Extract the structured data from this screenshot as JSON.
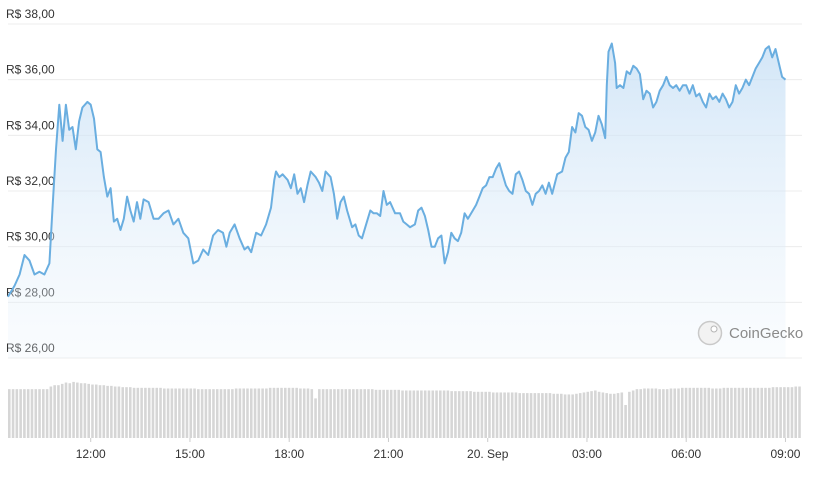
{
  "chart_data": {
    "type": "line",
    "currency_prefix": "R$",
    "watermark": "CoinGecko",
    "y_ticks": [
      "R$ 38,00",
      "R$ 36,00",
      "R$ 34,00",
      "R$ 32,00",
      "R$ 30,00",
      "R$ 28,00",
      "R$ 26,00"
    ],
    "y_tick_values": [
      38,
      36,
      34,
      32,
      30,
      28,
      26
    ],
    "ylim": [
      26,
      38
    ],
    "x_ticks": [
      "12:00",
      "15:00",
      "18:00",
      "21:00",
      "20. Sep",
      "03:00",
      "06:00",
      "09:00"
    ],
    "x_tick_hours": [
      12,
      15,
      18,
      21,
      24,
      27,
      30,
      33
    ],
    "xlim_hours": [
      9.5,
      33.5
    ],
    "grid": true,
    "series": [
      {
        "values": [
          [
            9.5,
            28.2
          ],
          [
            9.7,
            28.6
          ],
          [
            9.85,
            29.0
          ],
          [
            10.0,
            29.7
          ],
          [
            10.15,
            29.5
          ],
          [
            10.3,
            29.0
          ],
          [
            10.45,
            29.1
          ],
          [
            10.6,
            29.0
          ],
          [
            10.75,
            29.4
          ],
          [
            10.85,
            31.5
          ],
          [
            10.95,
            33.5
          ],
          [
            11.05,
            35.1
          ],
          [
            11.15,
            33.8
          ],
          [
            11.25,
            35.1
          ],
          [
            11.35,
            34.2
          ],
          [
            11.45,
            34.3
          ],
          [
            11.55,
            33.5
          ],
          [
            11.65,
            34.5
          ],
          [
            11.75,
            35.0
          ],
          [
            11.9,
            35.2
          ],
          [
            12.0,
            35.1
          ],
          [
            12.1,
            34.6
          ],
          [
            12.2,
            33.5
          ],
          [
            12.3,
            33.4
          ],
          [
            12.4,
            32.5
          ],
          [
            12.5,
            31.8
          ],
          [
            12.6,
            32.1
          ],
          [
            12.7,
            30.9
          ],
          [
            12.8,
            31.0
          ],
          [
            12.9,
            30.6
          ],
          [
            13.0,
            31.0
          ],
          [
            13.1,
            31.8
          ],
          [
            13.2,
            31.3
          ],
          [
            13.3,
            30.9
          ],
          [
            13.4,
            31.6
          ],
          [
            13.5,
            31.0
          ],
          [
            13.6,
            31.7
          ],
          [
            13.75,
            31.6
          ],
          [
            13.9,
            31.0
          ],
          [
            14.05,
            31.0
          ],
          [
            14.2,
            31.2
          ],
          [
            14.35,
            31.3
          ],
          [
            14.5,
            30.8
          ],
          [
            14.65,
            31.0
          ],
          [
            14.8,
            30.5
          ],
          [
            14.95,
            30.3
          ],
          [
            15.1,
            29.4
          ],
          [
            15.25,
            29.5
          ],
          [
            15.4,
            29.9
          ],
          [
            15.55,
            29.7
          ],
          [
            15.7,
            30.4
          ],
          [
            15.85,
            30.6
          ],
          [
            16.0,
            30.5
          ],
          [
            16.1,
            30.0
          ],
          [
            16.2,
            30.5
          ],
          [
            16.35,
            30.8
          ],
          [
            16.5,
            30.3
          ],
          [
            16.65,
            29.9
          ],
          [
            16.75,
            30.0
          ],
          [
            16.85,
            29.8
          ],
          [
            17.0,
            30.5
          ],
          [
            17.15,
            30.4
          ],
          [
            17.3,
            30.8
          ],
          [
            17.45,
            31.4
          ],
          [
            17.55,
            32.4
          ],
          [
            17.6,
            32.7
          ],
          [
            17.7,
            32.5
          ],
          [
            17.8,
            32.6
          ],
          [
            17.95,
            32.4
          ],
          [
            18.05,
            32.1
          ],
          [
            18.15,
            32.6
          ],
          [
            18.25,
            31.9
          ],
          [
            18.35,
            32.1
          ],
          [
            18.45,
            31.6
          ],
          [
            18.55,
            32.2
          ],
          [
            18.65,
            32.7
          ],
          [
            18.8,
            32.5
          ],
          [
            18.9,
            32.3
          ],
          [
            19.0,
            32.0
          ],
          [
            19.1,
            32.7
          ],
          [
            19.25,
            32.5
          ],
          [
            19.35,
            31.9
          ],
          [
            19.45,
            31.0
          ],
          [
            19.55,
            31.6
          ],
          [
            19.65,
            31.8
          ],
          [
            19.75,
            31.3
          ],
          [
            19.9,
            30.7
          ],
          [
            20.0,
            30.8
          ],
          [
            20.1,
            30.4
          ],
          [
            20.2,
            30.3
          ],
          [
            20.3,
            30.7
          ],
          [
            20.45,
            31.3
          ],
          [
            20.55,
            31.2
          ],
          [
            20.65,
            31.2
          ],
          [
            20.75,
            31.1
          ],
          [
            20.85,
            32.0
          ],
          [
            20.95,
            31.5
          ],
          [
            21.05,
            31.6
          ],
          [
            21.2,
            31.2
          ],
          [
            21.35,
            31.2
          ],
          [
            21.45,
            30.9
          ],
          [
            21.55,
            30.8
          ],
          [
            21.65,
            30.7
          ],
          [
            21.8,
            30.8
          ],
          [
            21.9,
            31.3
          ],
          [
            22.0,
            31.4
          ],
          [
            22.1,
            31.1
          ],
          [
            22.2,
            30.6
          ],
          [
            22.3,
            30.0
          ],
          [
            22.4,
            30.0
          ],
          [
            22.5,
            30.3
          ],
          [
            22.6,
            30.4
          ],
          [
            22.7,
            29.4
          ],
          [
            22.8,
            29.8
          ],
          [
            22.9,
            30.5
          ],
          [
            23.0,
            30.3
          ],
          [
            23.1,
            30.2
          ],
          [
            23.2,
            30.5
          ],
          [
            23.3,
            31.2
          ],
          [
            23.4,
            31.0
          ],
          [
            23.55,
            31.3
          ],
          [
            23.65,
            31.5
          ],
          [
            23.75,
            31.8
          ],
          [
            23.85,
            32.1
          ],
          [
            23.95,
            32.2
          ],
          [
            24.05,
            32.5
          ],
          [
            24.15,
            32.5
          ],
          [
            24.25,
            32.8
          ],
          [
            24.35,
            33.0
          ],
          [
            24.45,
            32.6
          ],
          [
            24.55,
            32.2
          ],
          [
            24.65,
            32.0
          ],
          [
            24.75,
            31.9
          ],
          [
            24.85,
            32.6
          ],
          [
            24.95,
            32.7
          ],
          [
            25.05,
            32.4
          ],
          [
            25.15,
            32.0
          ],
          [
            25.25,
            31.9
          ],
          [
            25.35,
            31.5
          ],
          [
            25.45,
            31.9
          ],
          [
            25.55,
            32.0
          ],
          [
            25.65,
            32.2
          ],
          [
            25.75,
            31.9
          ],
          [
            25.85,
            32.3
          ],
          [
            25.95,
            31.9
          ],
          [
            26.1,
            32.6
          ],
          [
            26.25,
            32.7
          ],
          [
            26.35,
            33.2
          ],
          [
            26.45,
            33.4
          ],
          [
            26.55,
            34.3
          ],
          [
            26.65,
            34.1
          ],
          [
            26.75,
            34.8
          ],
          [
            26.85,
            34.7
          ],
          [
            26.95,
            34.3
          ],
          [
            27.05,
            34.2
          ],
          [
            27.15,
            33.8
          ],
          [
            27.25,
            34.1
          ],
          [
            27.35,
            34.7
          ],
          [
            27.45,
            34.4
          ],
          [
            27.55,
            33.9
          ],
          [
            27.6,
            35.8
          ],
          [
            27.65,
            37.0
          ],
          [
            27.75,
            37.3
          ],
          [
            27.85,
            36.6
          ],
          [
            27.9,
            35.7
          ],
          [
            28.0,
            35.8
          ],
          [
            28.1,
            35.7
          ],
          [
            28.2,
            36.3
          ],
          [
            28.3,
            36.2
          ],
          [
            28.4,
            36.5
          ],
          [
            28.5,
            36.4
          ],
          [
            28.6,
            36.2
          ],
          [
            28.7,
            35.3
          ],
          [
            28.8,
            35.6
          ],
          [
            28.9,
            35.5
          ],
          [
            29.0,
            35.0
          ],
          [
            29.1,
            35.2
          ],
          [
            29.2,
            35.6
          ],
          [
            29.3,
            35.8
          ],
          [
            29.4,
            36.1
          ],
          [
            29.5,
            35.8
          ],
          [
            29.6,
            35.7
          ],
          [
            29.7,
            35.8
          ],
          [
            29.8,
            35.6
          ],
          [
            29.9,
            35.8
          ],
          [
            30.0,
            35.8
          ],
          [
            30.1,
            35.5
          ],
          [
            30.2,
            35.8
          ],
          [
            30.3,
            35.4
          ],
          [
            30.4,
            35.5
          ],
          [
            30.5,
            35.2
          ],
          [
            30.6,
            35.0
          ],
          [
            30.7,
            35.5
          ],
          [
            30.8,
            35.3
          ],
          [
            30.9,
            35.4
          ],
          [
            31.0,
            35.2
          ],
          [
            31.1,
            35.5
          ],
          [
            31.2,
            35.3
          ],
          [
            31.3,
            35.0
          ],
          [
            31.4,
            35.2
          ],
          [
            31.5,
            35.8
          ],
          [
            31.6,
            35.5
          ],
          [
            31.7,
            35.7
          ],
          [
            31.8,
            36.0
          ],
          [
            31.9,
            35.8
          ],
          [
            32.0,
            36.1
          ],
          [
            32.1,
            36.4
          ],
          [
            32.2,
            36.6
          ],
          [
            32.3,
            36.8
          ],
          [
            32.4,
            37.1
          ],
          [
            32.5,
            37.2
          ],
          [
            32.6,
            36.8
          ],
          [
            32.7,
            37.1
          ],
          [
            32.8,
            36.6
          ],
          [
            32.9,
            36.1
          ],
          [
            33.0,
            36.0
          ]
        ]
      }
    ],
    "volume": {
      "relative": [
        0.74,
        0.74,
        0.74,
        0.74,
        0.74,
        0.74,
        0.74,
        0.74,
        0.74,
        0.74,
        0.74,
        0.78,
        0.8,
        0.8,
        0.82,
        0.84,
        0.83,
        0.85,
        0.84,
        0.83,
        0.83,
        0.82,
        0.81,
        0.81,
        0.8,
        0.8,
        0.79,
        0.79,
        0.78,
        0.78,
        0.77,
        0.77,
        0.77,
        0.76,
        0.76,
        0.76,
        0.76,
        0.76,
        0.76,
        0.76,
        0.76,
        0.75,
        0.75,
        0.75,
        0.75,
        0.75,
        0.75,
        0.75,
        0.75,
        0.75,
        0.74,
        0.74,
        0.74,
        0.74,
        0.74,
        0.74,
        0.74,
        0.74,
        0.74,
        0.74,
        0.75,
        0.75,
        0.75,
        0.75,
        0.75,
        0.75,
        0.75,
        0.75,
        0.75,
        0.76,
        0.76,
        0.76,
        0.76,
        0.76,
        0.76,
        0.76,
        0.76,
        0.75,
        0.75,
        0.75,
        0.74,
        0.6,
        0.74,
        0.74,
        0.74,
        0.74,
        0.74,
        0.74,
        0.74,
        0.74,
        0.74,
        0.74,
        0.74,
        0.74,
        0.74,
        0.74,
        0.74,
        0.73,
        0.73,
        0.73,
        0.73,
        0.73,
        0.73,
        0.73,
        0.72,
        0.72,
        0.72,
        0.72,
        0.72,
        0.72,
        0.72,
        0.72,
        0.72,
        0.72,
        0.72,
        0.72,
        0.72,
        0.71,
        0.71,
        0.71,
        0.71,
        0.71,
        0.71,
        0.7,
        0.7,
        0.7,
        0.7,
        0.7,
        0.69,
        0.69,
        0.69,
        0.69,
        0.69,
        0.69,
        0.69,
        0.68,
        0.68,
        0.68,
        0.68,
        0.68,
        0.68,
        0.68,
        0.68,
        0.68,
        0.67,
        0.67,
        0.67,
        0.66,
        0.66,
        0.66,
        0.67,
        0.68,
        0.69,
        0.7,
        0.71,
        0.72,
        0.7,
        0.69,
        0.68,
        0.67,
        0.67,
        0.68,
        0.69,
        0.5,
        0.7,
        0.72,
        0.74,
        0.74,
        0.75,
        0.75,
        0.75,
        0.75,
        0.74,
        0.74,
        0.74,
        0.75,
        0.75,
        0.75,
        0.76,
        0.76,
        0.76,
        0.76,
        0.76,
        0.76,
        0.76,
        0.76,
        0.75,
        0.75,
        0.75,
        0.76,
        0.76,
        0.76,
        0.76,
        0.76,
        0.76,
        0.76,
        0.76,
        0.76,
        0.76,
        0.76,
        0.76,
        0.76,
        0.77,
        0.77,
        0.77,
        0.77,
        0.77,
        0.77,
        0.78,
        0.78
      ]
    }
  }
}
